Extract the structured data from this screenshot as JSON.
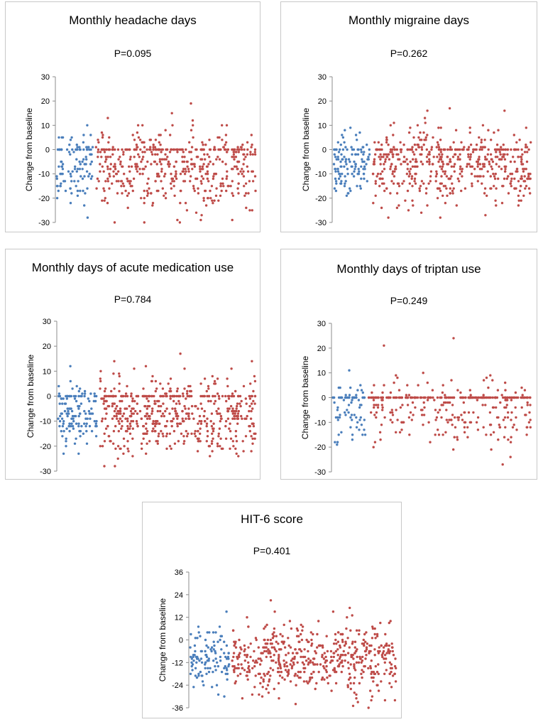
{
  "chart_data": [
    {
      "type": "scatter",
      "title": "Monthly headache days",
      "pvalue": "P=0.095",
      "ylabel": "Change from baseline",
      "ylim": [
        -30,
        30
      ],
      "yticks": [
        "30",
        "20",
        "10",
        "0",
        "-10",
        "-20",
        "-30"
      ],
      "series": [
        {
          "name": "group-blue",
          "color": "#4a7ebb",
          "n": 110,
          "mean": -7,
          "sd": 7,
          "zeros": 0.12,
          "seed": 11
        },
        {
          "name": "group-red",
          "color": "#be4b48",
          "n": 520,
          "mean": -8,
          "sd": 8,
          "zeros": 0.14,
          "seed": 12
        }
      ]
    },
    {
      "type": "scatter",
      "title": "Monthly migraine days",
      "pvalue": "P=0.262",
      "ylabel": "Change from baseline",
      "ylim": [
        -30,
        30
      ],
      "yticks": [
        "30",
        "20",
        "10",
        "0",
        "-10",
        "-20",
        "-30"
      ],
      "series": [
        {
          "name": "group-blue",
          "color": "#4a7ebb",
          "n": 120,
          "mean": -6,
          "sd": 7,
          "zeros": 0.1,
          "seed": 21
        },
        {
          "name": "group-red",
          "color": "#be4b48",
          "n": 540,
          "mean": -7,
          "sd": 8,
          "zeros": 0.1,
          "seed": 22
        }
      ]
    },
    {
      "type": "scatter",
      "title": "Monthly days of acute medication use",
      "pvalue": "P=0.784",
      "ylabel": "Change from baseline",
      "ylim": [
        -30,
        30
      ],
      "yticks": [
        "30",
        "20",
        "10",
        "0",
        "-10",
        "-20",
        "-30"
      ],
      "series": [
        {
          "name": "group-blue",
          "color": "#4a7ebb",
          "n": 130,
          "mean": -8,
          "sd": 7,
          "zeros": 0.06,
          "seed": 31
        },
        {
          "name": "group-red",
          "color": "#be4b48",
          "n": 560,
          "mean": -8,
          "sd": 8,
          "zeros": 0.1,
          "seed": 32
        }
      ]
    },
    {
      "type": "scatter",
      "title": "Monthly days of triptan use",
      "pvalue": "P=0.249",
      "ylabel": "Change from baseline",
      "ylim": [
        -30,
        30
      ],
      "yticks": [
        "30",
        "20",
        "10",
        "0",
        "-10",
        "-20",
        "-30"
      ],
      "series": [
        {
          "name": "group-blue",
          "color": "#4a7ebb",
          "n": 80,
          "mean": -7,
          "sd": 7,
          "zeros": 0.3,
          "seed": 41
        },
        {
          "name": "group-red",
          "color": "#be4b48",
          "n": 360,
          "mean": -6,
          "sd": 7,
          "zeros": 0.4,
          "seed": 42
        }
      ]
    },
    {
      "type": "scatter",
      "title": "HIT-6 score",
      "pvalue": "P=0.401",
      "ylabel": "Change from baseline",
      "ylim": [
        -36,
        36
      ],
      "yticks": [
        "36",
        "24",
        "12",
        "0",
        "-12",
        "-24",
        "-36"
      ],
      "series": [
        {
          "name": "group-blue",
          "color": "#4a7ebb",
          "n": 110,
          "mean": -9,
          "sd": 8,
          "zeros": 0.0,
          "seed": 51
        },
        {
          "name": "group-red",
          "color": "#be4b48",
          "n": 540,
          "mean": -10,
          "sd": 9,
          "zeros": 0.0,
          "seed": 52
        }
      ]
    }
  ]
}
